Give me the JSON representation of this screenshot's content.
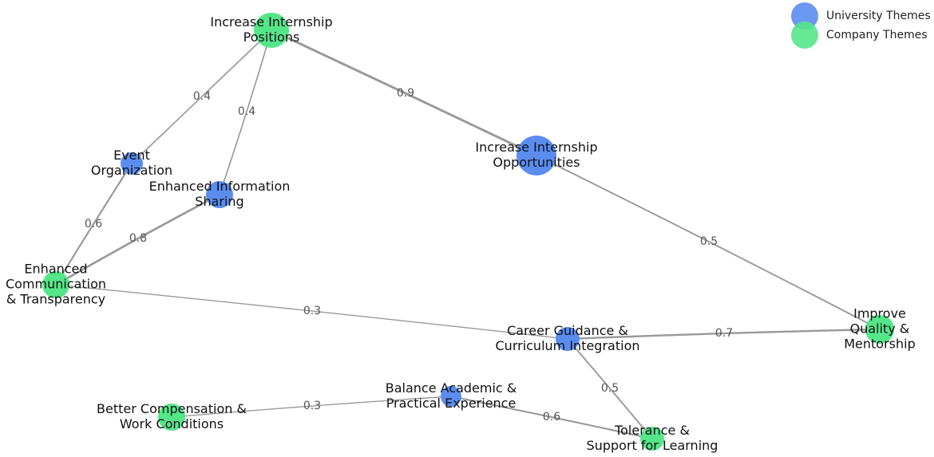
{
  "legend": [
    {
      "label": "University Themes",
      "color": "#5b8def"
    },
    {
      "label": "Company Themes",
      "color": "#55e68a"
    }
  ],
  "nodes": [
    {
      "lines": [
        "Increase Internship",
        "Positions"
      ],
      "color": "#55e68a"
    },
    {
      "lines": [
        "Event",
        "Organization"
      ],
      "color": "#5b8def"
    },
    {
      "lines": [
        "Enhanced Information",
        "Sharing"
      ],
      "color": "#5b8def"
    },
    {
      "lines": [
        "Enhanced",
        "Communication",
        "& Transparency"
      ],
      "color": "#55e68a"
    },
    {
      "lines": [
        "Increase Internship",
        "Opportunities"
      ],
      "color": "#5b8def"
    },
    {
      "lines": [
        "Improve",
        "Quality &",
        "Mentorship"
      ],
      "color": "#55e68a"
    },
    {
      "lines": [
        "Career Guidance &",
        "Curriculum Integration"
      ],
      "color": "#5b8def"
    },
    {
      "lines": [
        "Balance Academic &",
        "Practical Experience"
      ],
      "color": "#5b8def"
    },
    {
      "lines": [
        "Better Compensation &",
        "Work Conditions"
      ],
      "color": "#55e68a"
    },
    {
      "lines": [
        "Tolerance &",
        "Support for Learning"
      ],
      "color": "#55e68a"
    }
  ],
  "edges": [
    {
      "from": 0,
      "to": 1,
      "weight": 0.4
    },
    {
      "from": 0,
      "to": 2,
      "weight": 0.4
    },
    {
      "from": 0,
      "to": 4,
      "weight": 0.9
    },
    {
      "from": 4,
      "to": 5,
      "weight": 0.5
    },
    {
      "from": 1,
      "to": 3,
      "weight": 0.6
    },
    {
      "from": 2,
      "to": 3,
      "weight": 0.8
    },
    {
      "from": 3,
      "to": 6,
      "weight": 0.3
    },
    {
      "from": 6,
      "to": 5,
      "weight": 0.7
    },
    {
      "from": 6,
      "to": 9,
      "weight": 0.5
    },
    {
      "from": 8,
      "to": 7,
      "weight": 0.3
    },
    {
      "from": 7,
      "to": 9,
      "weight": 0.6
    }
  ]
}
